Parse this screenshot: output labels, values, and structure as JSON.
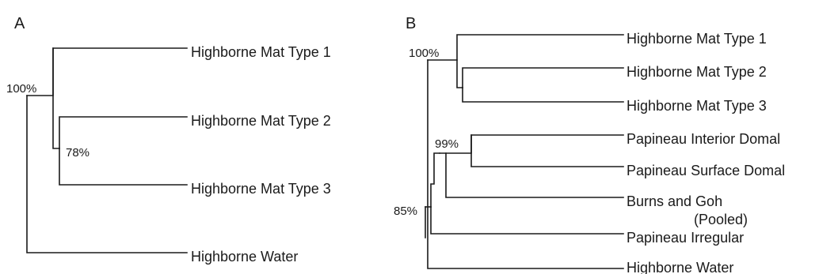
{
  "panels": {
    "a": {
      "label": "A",
      "leaves": [
        "Highborne Mat Type 1",
        "Highborne Mat Type 2",
        "Highborne Mat Type 3",
        "Highborne Water"
      ],
      "support": [
        "100%",
        "78%"
      ]
    },
    "b": {
      "label": "B",
      "leaves": [
        "Highborne Mat Type 1",
        "Highborne Mat Type 2",
        "Highborne Mat Type 3",
        "Papineau Interior Domal",
        "Papineau Surface Domal",
        "Burns and Goh",
        "(Pooled)",
        "Papineau Irregular",
        "Highborne Water"
      ],
      "support": [
        "100%",
        "99%",
        "85%"
      ]
    }
  }
}
